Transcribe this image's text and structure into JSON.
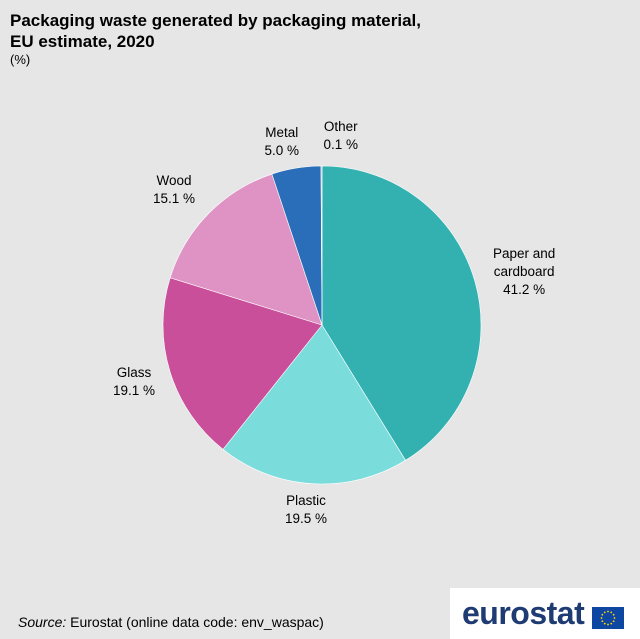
{
  "title_line1": "Packaging waste generated by packaging material,",
  "title_line2": "EU estimate, 2020",
  "unit": "(%)",
  "source_label": "Source:",
  "source_text": " Eurostat (online data code: env_waspac)",
  "logo_text": "eurostat",
  "chart_data": {
    "type": "pie",
    "title": "Packaging waste generated by packaging material, EU estimate, 2020",
    "unit": "%",
    "slices": [
      {
        "label": "Paper and cardboard",
        "label_lines": [
          "Paper and",
          "cardboard"
        ],
        "value": 41.2,
        "value_text": "41.2 %",
        "color": "#33b1b1"
      },
      {
        "label": "Plastic",
        "label_lines": [
          "Plastic"
        ],
        "value": 19.5,
        "value_text": "19.5 %",
        "color": "#7bdcdc"
      },
      {
        "label": "Glass",
        "label_lines": [
          "Glass"
        ],
        "value": 19.1,
        "value_text": "19.1 %",
        "color": "#c94f9a"
      },
      {
        "label": "Wood",
        "label_lines": [
          "Wood"
        ],
        "value": 15.1,
        "value_text": "15.1 %",
        "color": "#df93c4"
      },
      {
        "label": "Metal",
        "label_lines": [
          "Metal"
        ],
        "value": 5.0,
        "value_text": "5.0 %",
        "color": "#2a6db8"
      },
      {
        "label": "Other",
        "label_lines": [
          "Other"
        ],
        "value": 0.1,
        "value_text": "0.1 %",
        "color": "#a9a9a9"
      }
    ],
    "start_angle": "12 o'clock",
    "direction": "clockwise"
  }
}
